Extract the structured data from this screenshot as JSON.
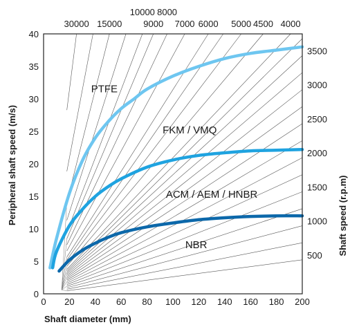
{
  "chart_data": {
    "type": "line",
    "xlabel": "Shaft diameter  (mm)",
    "ylabel": "Peripheral shaft speed  (m/s)",
    "y2label": "Shaft speed  (r.p.m)",
    "xlim": [
      0,
      200
    ],
    "ylim": [
      0,
      40
    ],
    "x_ticks": [
      0,
      20,
      40,
      60,
      80,
      100,
      120,
      140,
      160,
      180,
      200
    ],
    "y_ticks": [
      0,
      5,
      10,
      15,
      20,
      25,
      30,
      35,
      40
    ],
    "rpm_right_ticks": [
      500,
      1000,
      1500,
      2000,
      2500,
      3000,
      3500
    ],
    "rpm_top_row1_ticks": [
      30000,
      15000,
      9000,
      7000,
      6000,
      5000,
      4500,
      4000
    ],
    "rpm_top_row2_ticks": [
      10000,
      8000
    ],
    "rpm_fan_lines": [
      500,
      750,
      1000,
      1250,
      1500,
      1750,
      2000,
      2250,
      2500,
      2750,
      3000,
      3250,
      3500,
      3750,
      4000,
      4500,
      5000,
      5500,
      6000,
      7000,
      8000,
      9000,
      10000,
      12000,
      15000,
      20000,
      30000
    ],
    "grid": true,
    "series": [
      {
        "name": "PTFE",
        "color": "#6ec6f0",
        "x": [
          5,
          10,
          20,
          30,
          40,
          50,
          60,
          70,
          80,
          100,
          120,
          140,
          160,
          180,
          200
        ],
        "y": [
          4,
          8.5,
          15.5,
          20.5,
          24,
          26.5,
          28.5,
          30,
          31.5,
          33.5,
          35,
          36.2,
          37,
          37.5,
          38
        ]
      },
      {
        "name": "FKM / VMQ",
        "color": "#1fa3e0",
        "x": [
          7,
          10,
          20,
          30,
          40,
          50,
          60,
          80,
          100,
          120,
          140,
          160,
          180,
          200
        ],
        "y": [
          4,
          6.5,
          10.5,
          13,
          15,
          16.5,
          17.7,
          19.5,
          20.6,
          21.3,
          21.7,
          22,
          22.1,
          22.2
        ]
      },
      {
        "name": "NBR",
        "color": "#0c68aa",
        "x": [
          12,
          20,
          30,
          40,
          50,
          60,
          80,
          100,
          120,
          140,
          160,
          180,
          200
        ],
        "y": [
          3.5,
          5.2,
          6.7,
          7.8,
          8.7,
          9.4,
          10.3,
          10.9,
          11.4,
          11.7,
          11.9,
          12,
          12
        ]
      }
    ],
    "region_labels": [
      {
        "text": "PTFE",
        "x": 47,
        "y": 31
      },
      {
        "text": "FKM / VMQ",
        "x": 113,
        "y": 24.7
      },
      {
        "text": "ACM / AEM / HNBR",
        "x": 130,
        "y": 14.8
      },
      {
        "text": "NBR",
        "x": 118,
        "y": 7
      }
    ]
  }
}
